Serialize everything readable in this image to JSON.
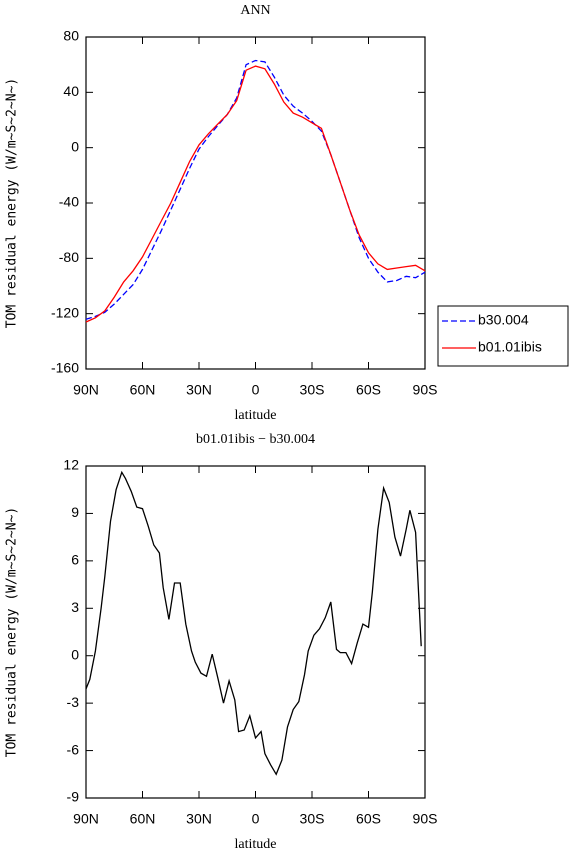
{
  "chart_data": [
    {
      "type": "line",
      "title": "ANN",
      "xlabel": "latitude",
      "ylabel": "TOM residual energy (W/m~S~2~N~)",
      "x": [
        90,
        85,
        80,
        75,
        70,
        65,
        60,
        55,
        50,
        45,
        40,
        35,
        30,
        25,
        20,
        15,
        10,
        5,
        0,
        -5,
        -10,
        -15,
        -20,
        -25,
        -30,
        -35,
        -40,
        -45,
        -50,
        -55,
        -60,
        -65,
        -70,
        -75,
        -80,
        -85,
        -90
      ],
      "xlim": [
        90,
        -90
      ],
      "xticks": [
        {
          "value": 90,
          "label": "90N"
        },
        {
          "value": 60,
          "label": "60N"
        },
        {
          "value": 30,
          "label": "30N"
        },
        0,
        {
          "value": -30,
          "label": "30S"
        },
        {
          "value": -60,
          "label": "60S"
        },
        {
          "value": -90,
          "label": "90S"
        }
      ],
      "ylim": [
        -160,
        80
      ],
      "yticks": [
        -160,
        -120,
        -80,
        -40,
        0,
        40,
        80
      ],
      "legend": "right",
      "series": [
        {
          "name": "b30.004",
          "color": "#0000ff",
          "dash": true,
          "values": [
            -124,
            -122,
            -119,
            -113,
            -106,
            -99,
            -88,
            -74,
            -60,
            -45,
            -30,
            -15,
            -1,
            8,
            16,
            24,
            36,
            60,
            63,
            62,
            51,
            38,
            30,
            25,
            19,
            12,
            -5,
            -25,
            -45,
            -65,
            -80,
            -90,
            -97,
            -96,
            -93,
            -94,
            -90
          ]
        },
        {
          "name": "b01.01ibis",
          "color": "#ff0000",
          "dash": false,
          "values": [
            -126,
            -123,
            -118,
            -108,
            -97,
            -89,
            -79,
            -66,
            -53,
            -40,
            -25,
            -10,
            2,
            10,
            17,
            24,
            34,
            56,
            59,
            57,
            46,
            33,
            25,
            22,
            18,
            14,
            -5,
            -25,
            -45,
            -63,
            -76,
            -84,
            -88,
            -87,
            -86,
            -85,
            -89
          ]
        }
      ]
    },
    {
      "type": "line",
      "title": "b01.01ibis − b30.004",
      "xlabel": "latitude",
      "ylabel": "TOM residual energy (W/m~S~2~N~)",
      "x": [
        90,
        88,
        85,
        82,
        80,
        77,
        74,
        71,
        69,
        66,
        63,
        60,
        57,
        54,
        51,
        49,
        46,
        43,
        40,
        37,
        34,
        32,
        29,
        26,
        23,
        20,
        17,
        14,
        11,
        9,
        6,
        3,
        0,
        -3,
        -5,
        -8,
        -11,
        -14,
        -17,
        -20,
        -23,
        -26,
        -28,
        -31,
        -34,
        -37,
        -40,
        -43,
        -45,
        -48,
        -51,
        -54,
        -57,
        -60,
        -62,
        -65,
        -68,
        -71,
        -74,
        -77,
        -80,
        -82,
        -85,
        -88
      ],
      "xlim": [
        90,
        -90
      ],
      "xticks": [
        {
          "value": 90,
          "label": "90N"
        },
        {
          "value": 60,
          "label": "60N"
        },
        {
          "value": 30,
          "label": "30N"
        },
        0,
        {
          "value": -30,
          "label": "30S"
        },
        {
          "value": -60,
          "label": "60S"
        },
        {
          "value": -90,
          "label": "90S"
        }
      ],
      "ylim": [
        -9,
        12
      ],
      "yticks": [
        -9,
        -6,
        -3,
        0,
        3,
        6,
        9,
        12
      ],
      "series": [
        {
          "color": "#000000",
          "dash": false,
          "values": [
            -2.1,
            -1.5,
            0.3,
            3,
            5,
            8.5,
            10.5,
            11.6,
            11.2,
            10.4,
            9.4,
            9.3,
            8.2,
            7,
            6.5,
            4.3,
            2.3,
            4.6,
            4.6,
            2,
            0.3,
            -0.4,
            -1.1,
            -1.3,
            0.1,
            -1.4,
            -3,
            -1.6,
            -2.8,
            -4.8,
            -4.7,
            -3.8,
            -5.2,
            -4.8,
            -6.2,
            -6.9,
            -7.5,
            -6.6,
            -4.5,
            -3.4,
            -2.9,
            -1.2,
            0.3,
            1.3,
            1.7,
            2.4,
            3.4,
            0.4,
            0.2,
            0.2,
            -0.5,
            0.8,
            2,
            1.8,
            4,
            8,
            10.6,
            9.7,
            7.5,
            6.3,
            8,
            9.2,
            7.8,
            0.6
          ]
        }
      ]
    }
  ]
}
